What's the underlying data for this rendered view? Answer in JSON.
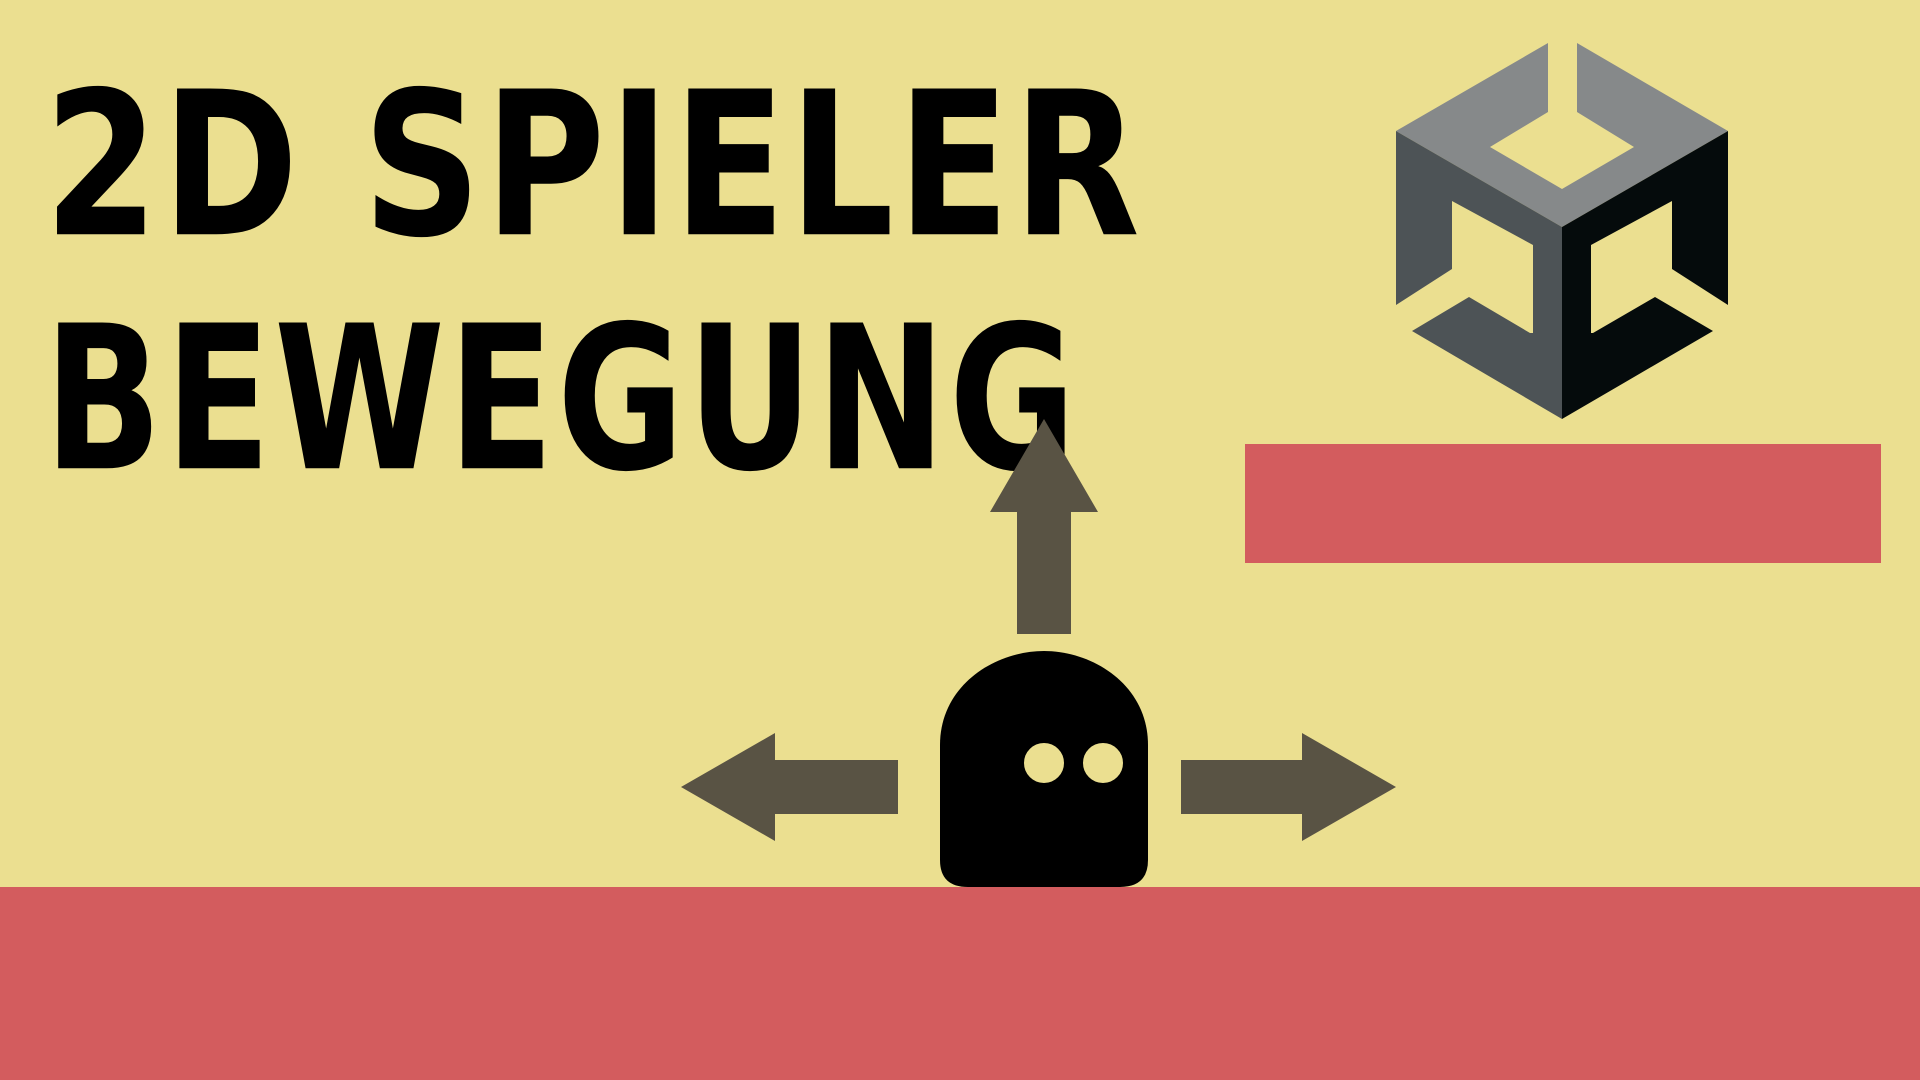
{
  "scene": {
    "background_color": "#ebdf90",
    "platform_color": "#d35c5e",
    "arrow_color": "#595344",
    "character_color": "#000000",
    "eye_color": "#ebdf90"
  },
  "title": {
    "line1": "2D SPIELER",
    "line2": "BEWEGUNG"
  },
  "logo": {
    "name": "unity-logo",
    "colors": {
      "top": "#86898a",
      "left": "#4d5356",
      "right": "#050b0c"
    }
  },
  "arrows": [
    {
      "direction": "up"
    },
    {
      "direction": "left"
    },
    {
      "direction": "right"
    }
  ]
}
